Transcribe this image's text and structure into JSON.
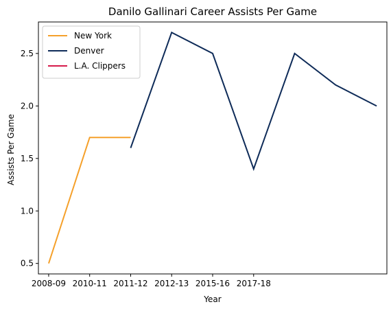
{
  "chart_data": {
    "type": "line",
    "title": "Danilo Gallinari Career Assists Per Game",
    "xlabel": "Year",
    "ylabel": "Assists Per Game",
    "ylim": [
      0.4,
      2.8
    ],
    "yticks": [
      0.5,
      1.0,
      1.5,
      2.0,
      2.5
    ],
    "ytick_labels": [
      "0.5",
      "1.0",
      "1.5",
      "2.0",
      "2.5"
    ],
    "x_ticks": [
      {
        "index": 0,
        "label": "2008-09"
      },
      {
        "index": 2,
        "label": "2010-11"
      },
      {
        "index": 4,
        "label": "2011-12"
      },
      {
        "index": 6,
        "label": "2012-13"
      },
      {
        "index": 8,
        "label": "2015-16"
      },
      {
        "index": 10,
        "label": "2017-18"
      }
    ],
    "x_range": [
      -0.5,
      16.5
    ],
    "grid": false,
    "legend_position": "top-left",
    "series": [
      {
        "name": "New York",
        "color": "#f5a02a",
        "x": [
          0,
          2,
          4
        ],
        "values": [
          0.5,
          1.7,
          1.7
        ]
      },
      {
        "name": "Denver",
        "color": "#0e2b58",
        "x": [
          4,
          6,
          8,
          10,
          12,
          14,
          16
        ],
        "values": [
          1.6,
          2.7,
          2.5,
          1.4,
          2.5,
          2.2,
          2.0
        ]
      },
      {
        "name": "L.A. Clippers",
        "color": "#d61a4a",
        "x": [],
        "values": []
      }
    ]
  }
}
